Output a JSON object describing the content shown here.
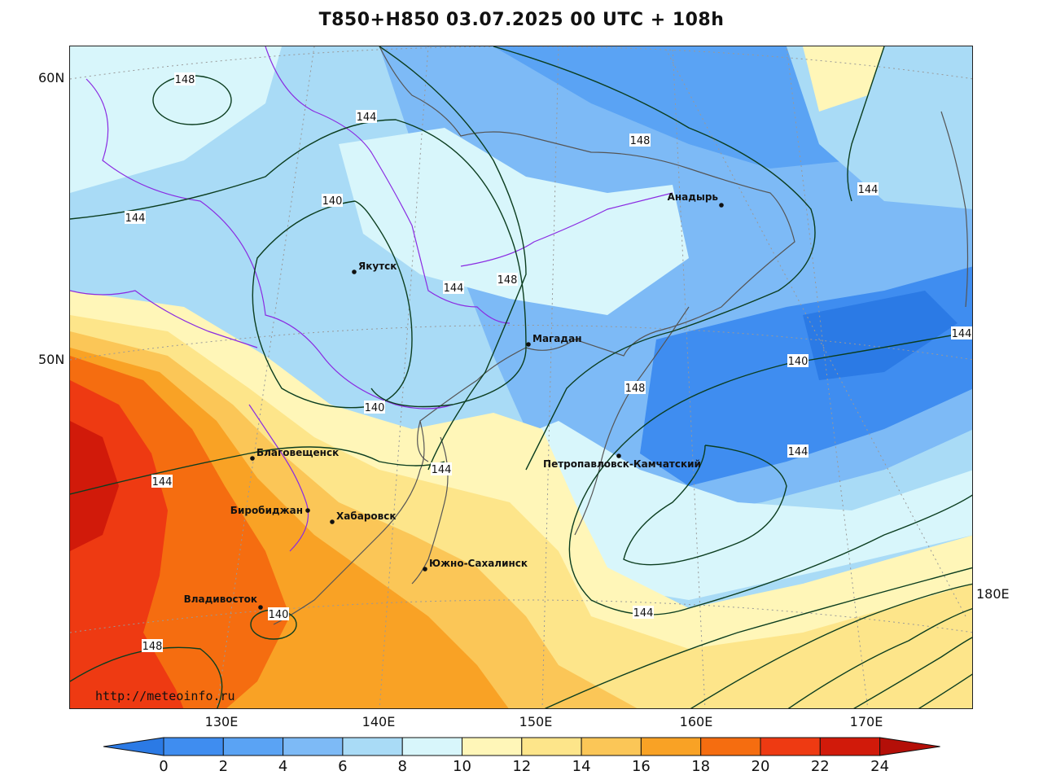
{
  "title": "T850+H850 03.07.2025 00 UTC + 108h",
  "website": "http://meteoinfo.ru",
  "lat_labels": [
    "60N",
    "50N"
  ],
  "lon_labels": [
    "130E",
    "140E",
    "150E",
    "160E",
    "170E",
    "180E"
  ],
  "cities": [
    {
      "name": "Якутск"
    },
    {
      "name": "Магадан"
    },
    {
      "name": "Анадырь"
    },
    {
      "name": "Петропавловск-Камчатский"
    },
    {
      "name": "Благовещенск"
    },
    {
      "name": "Биробиджан"
    },
    {
      "name": "Хабаровск"
    },
    {
      "name": "Южно-Сахалинск"
    },
    {
      "name": "Владивосток"
    }
  ],
  "contour_labels": [
    "148",
    "144",
    "140",
    "144",
    "144",
    "148",
    "148",
    "144",
    "144",
    "140",
    "140",
    "144",
    "148",
    "148",
    "144",
    "144",
    "140",
    "144"
  ],
  "colorbar": {
    "ticks": [
      "0",
      "2",
      "4",
      "6",
      "8",
      "10",
      "12",
      "14",
      "16",
      "18",
      "20",
      "22",
      "24"
    ],
    "colors": [
      "#2b7ae5",
      "#3f8df0",
      "#5aa3f4",
      "#7dbaf6",
      "#a9dbf6",
      "#d8f6fb",
      "#fff6b8",
      "#fde58a",
      "#fbc657",
      "#f9a225",
      "#f56d10",
      "#ee3a12",
      "#d11a0a",
      "#b40f08"
    ]
  }
}
